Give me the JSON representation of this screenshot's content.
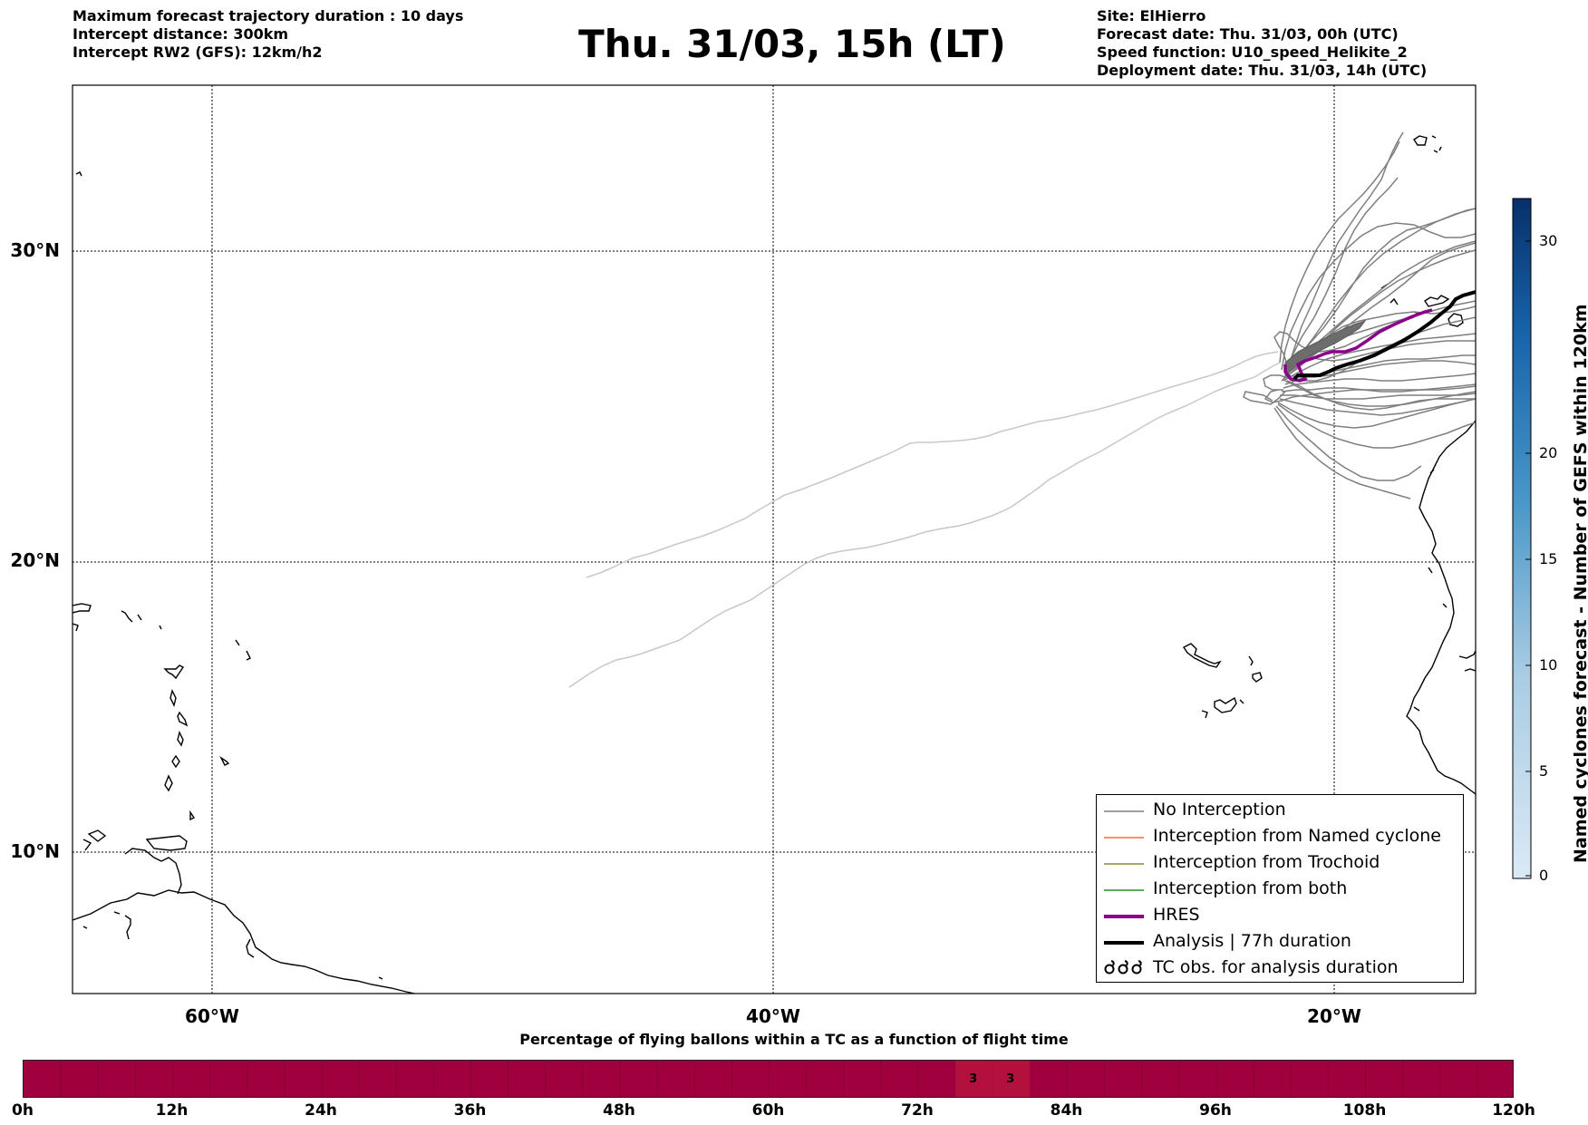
{
  "header": {
    "left_lines": [
      "Maximum forecast trajectory duration : 10 days",
      "Intercept distance: 300km",
      "Intercept RW2 (GFS):  12km/h2"
    ],
    "title": "Thu. 31/03, 15h (LT)",
    "right_lines": [
      "Site: ElHierro",
      "Forecast date: Thu. 31/03, 00h (UTC)",
      "Speed function: U10_speed_Helikite_2",
      "Deployment date: Thu. 31/03, 14h (UTC)"
    ]
  },
  "map": {
    "lon_labels": [
      "60°W",
      "40°W",
      "20°W"
    ],
    "lat_labels": [
      "30°N",
      "20°N",
      "10°N"
    ],
    "gridlines": "dotted",
    "colors": {
      "no_interception": "#7f7f7f",
      "named_cyclone": "#ff6a33",
      "trochoid": "#8c8c2a",
      "both": "#2a8c2a",
      "hres": "#8b008b",
      "analysis": "#000000",
      "faded_tracks": "#c8c8c8"
    }
  },
  "legend": {
    "items": [
      {
        "label": "No Interception",
        "color": "#7f7f7f",
        "style": "thin"
      },
      {
        "label": "Interception from Named cyclone",
        "color": "#ff6a33",
        "style": "thin"
      },
      {
        "label": "Interception from Trochoid",
        "color": "#8c8c2a",
        "style": "thin"
      },
      {
        "label": "Interception from both",
        "color": "#2a8c2a",
        "style": "thin"
      },
      {
        "label": "HRES",
        "color": "#8b008b",
        "style": "thick"
      },
      {
        "label": "Analysis | 77h duration",
        "color": "#000000",
        "style": "thick"
      },
      {
        "label": "TC obs. for analysis duration",
        "color": "#000000",
        "style": "cyclone-symbols"
      }
    ]
  },
  "colorbar": {
    "label": "Named cyclones forecast - Number of GEFS within 120km",
    "ticks": [
      "0",
      "5",
      "10",
      "15",
      "20",
      "30"
    ],
    "range": [
      0,
      32
    ],
    "color_low": "#dbe9f6",
    "color_high": "#08306b"
  },
  "timeline": {
    "title": "Percentage of flying ballons within a TC as a function of flight time",
    "ticks": [
      "0h",
      "12h",
      "24h",
      "36h",
      "48h",
      "60h",
      "72h",
      "84h",
      "96h",
      "108h",
      "120h"
    ],
    "fill_color": "#a1003f",
    "cells": [
      {
        "start_h": 75,
        "end_h": 78,
        "value": "3",
        "color": "#b4103e"
      },
      {
        "start_h": 78,
        "end_h": 81,
        "value": "3",
        "color": "#b4103e"
      }
    ],
    "range_h": [
      0,
      120
    ]
  }
}
